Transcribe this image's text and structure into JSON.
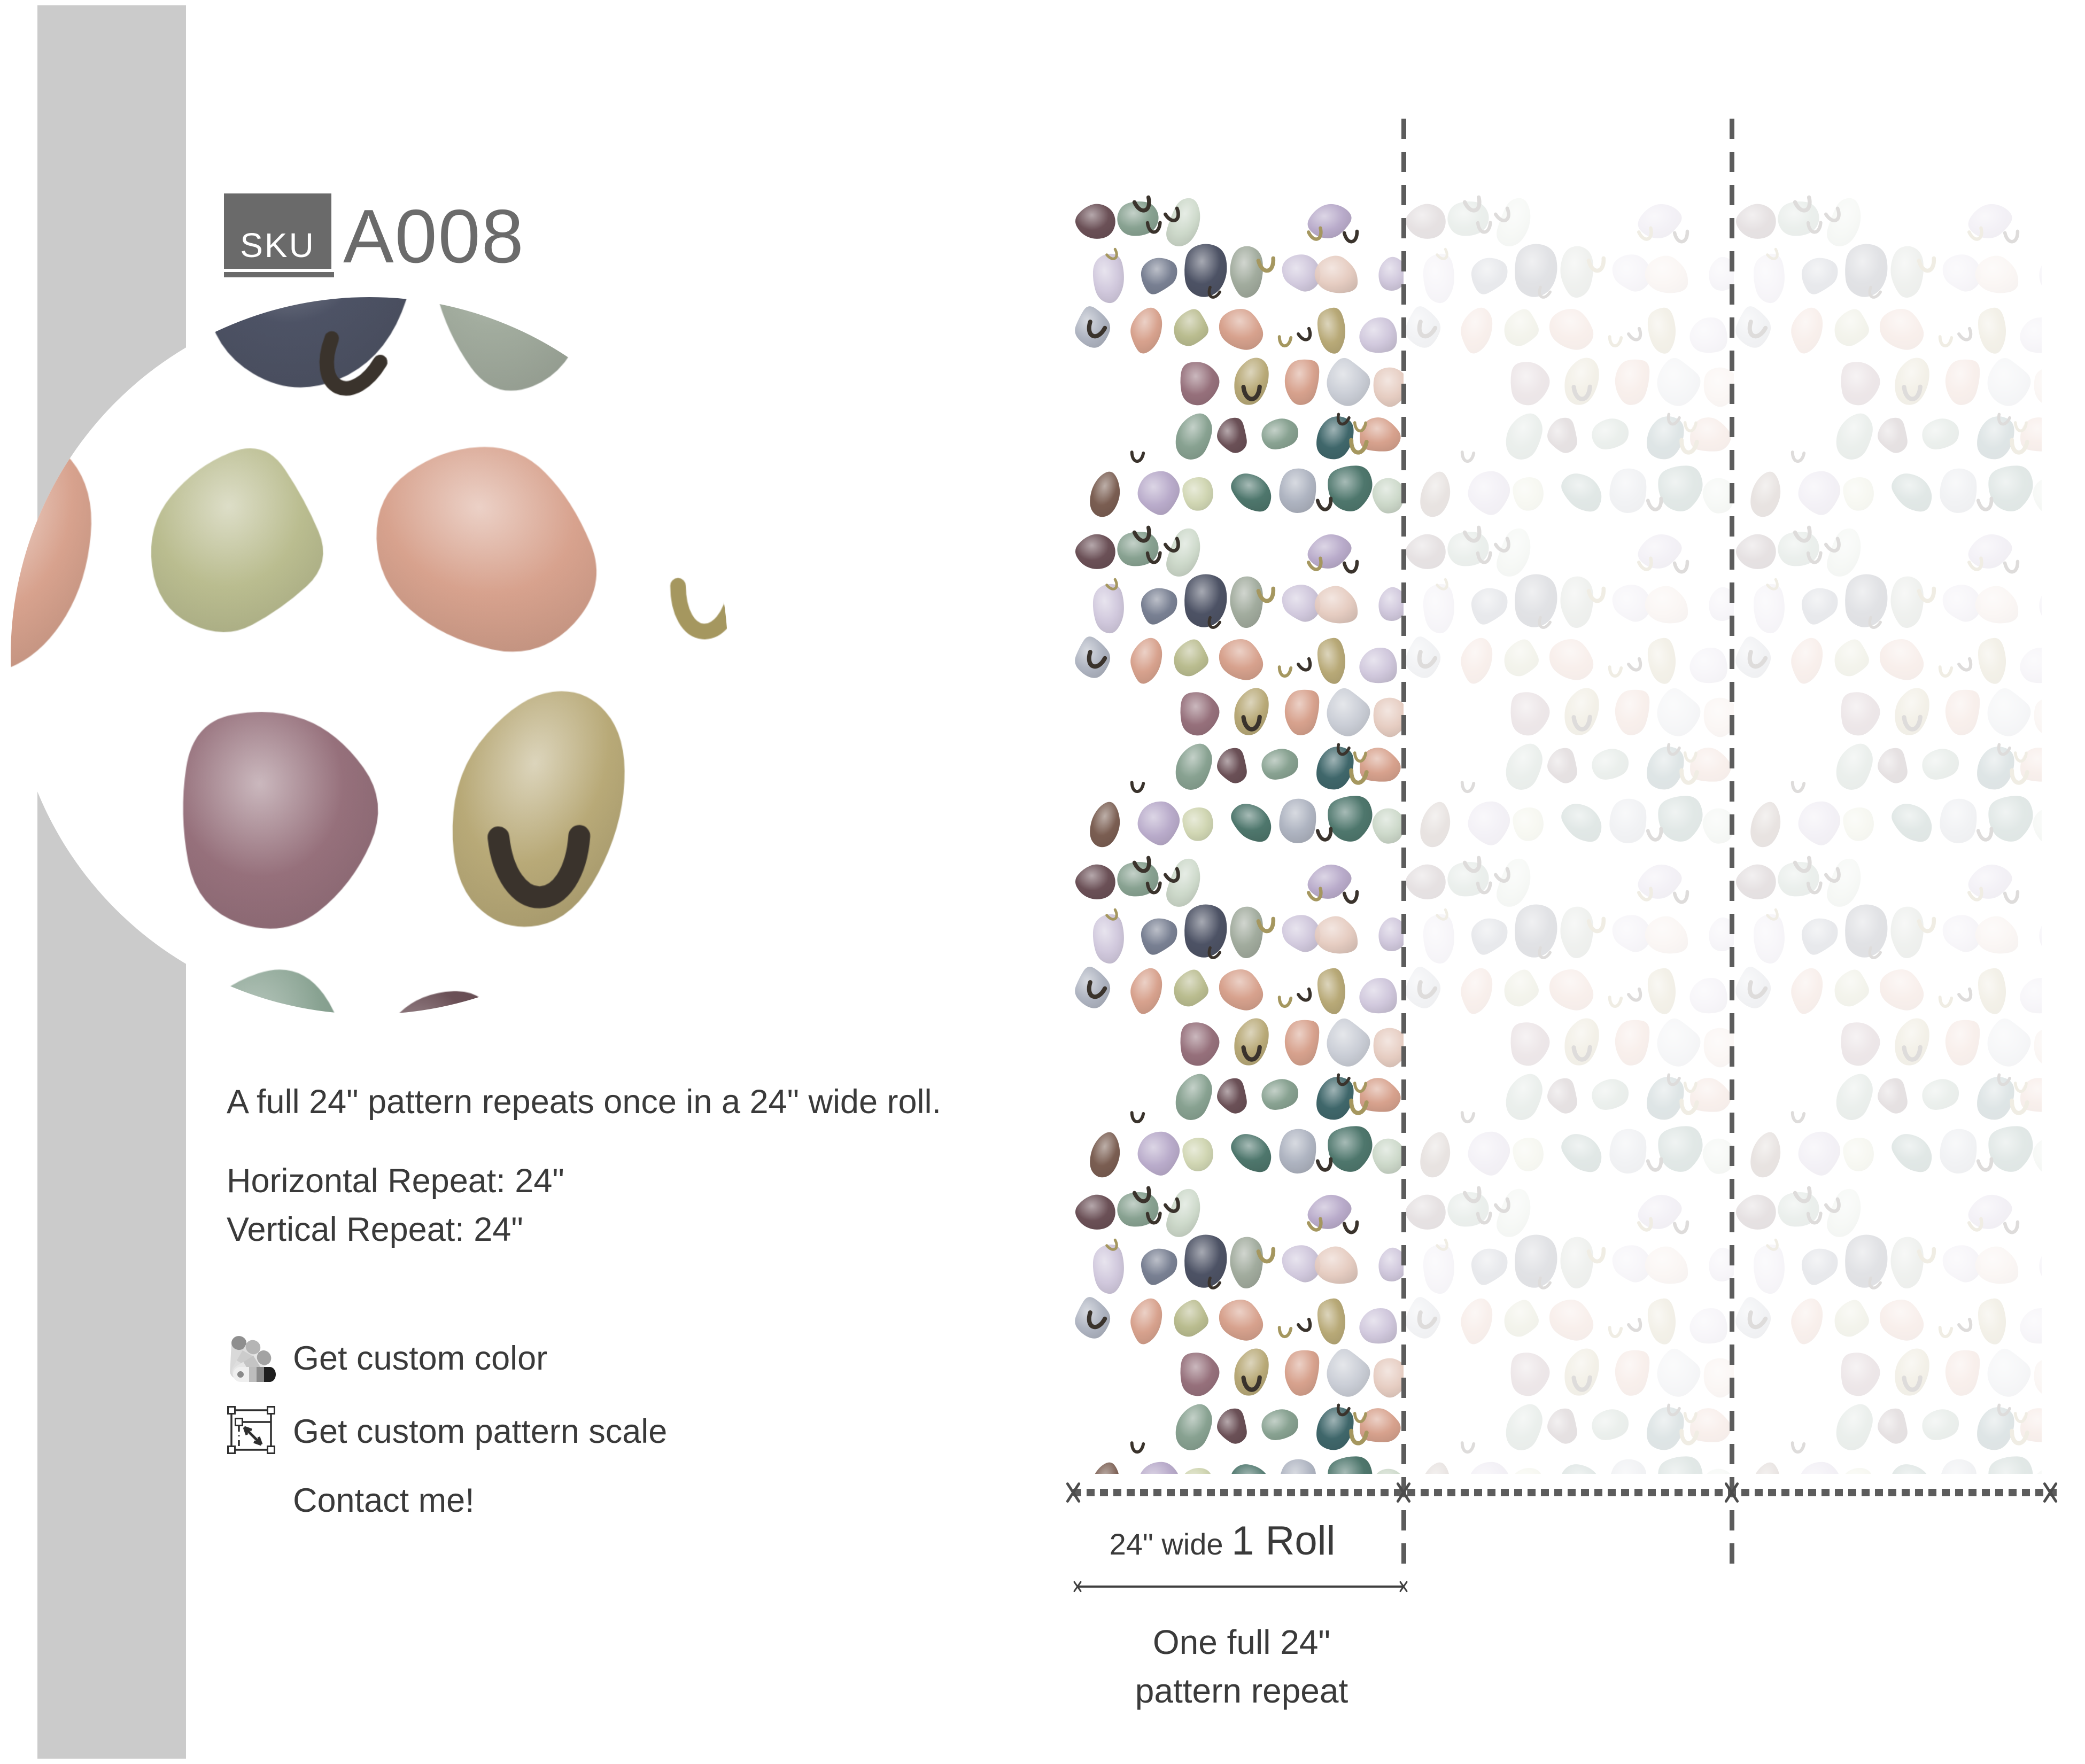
{
  "sku": {
    "label": "SKU",
    "value": "A008"
  },
  "description": "A full 24\" pattern repeats once in a 24\" wide roll.",
  "specs": {
    "horizontal": "Horizontal Repeat: 24\"",
    "vertical": "Vertical Repeat: 24\""
  },
  "actions": [
    {
      "icon": "color-fan-icon",
      "label": "Get custom color"
    },
    {
      "icon": "pattern-scale-icon",
      "label": "Get custom pattern scale"
    }
  ],
  "contact_label": "Contact me!",
  "roll_viz": {
    "width_label_small": "24\" wide ",
    "width_label_big": "1 Roll",
    "caption_line1": "One full 24\"",
    "caption_line2": "pattern repeat",
    "columns_shown": 3,
    "full_opacity_columns": 1
  },
  "colors": {
    "accent_bar": "#cbcbcb",
    "sku_box": "#6a6a6a",
    "text": "#3a3a3a",
    "guide_lines": "#5c5c5c"
  },
  "pattern": {
    "seed": 11,
    "tile_size": 618,
    "background": "#ffffff",
    "faded_opacity": 0.17,
    "palette": [
      "#c08b67",
      "#dbb08c",
      "#d49a84",
      "#e4c9bd",
      "#b4b786",
      "#cdd3ad",
      "#c9d6c6",
      "#7e9a88",
      "#3f6b60",
      "#2f5a5e",
      "#b3a4c6",
      "#cdc4da",
      "#6d7589",
      "#3e4458",
      "#a8aebc",
      "#c6cad3",
      "#8d6470",
      "#5e4148",
      "#6f5043",
      "#b2a26c",
      "#9aa596"
    ],
    "hook_colors": [
      "#3a332c",
      "#a5975f"
    ]
  }
}
